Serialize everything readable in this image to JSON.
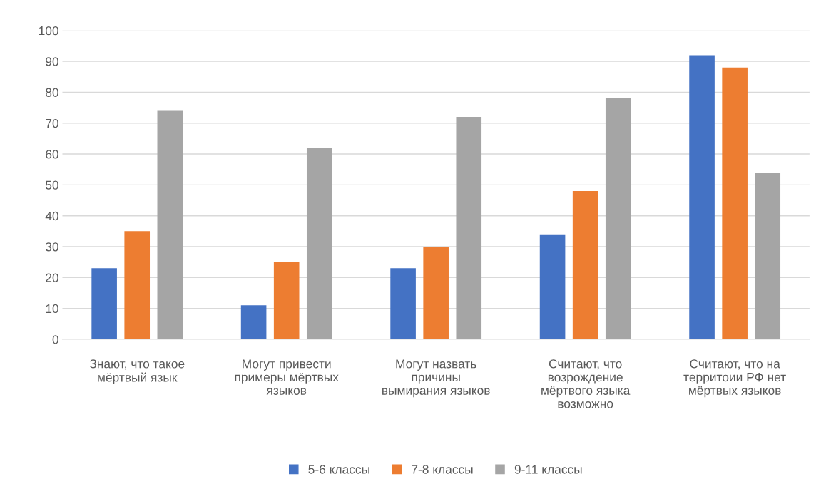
{
  "chart_data": {
    "type": "bar",
    "categories": [
      "Знают, что такое\nмёртвый язык",
      "Могут привести\nпримеры мёртвых\nязыков",
      "Могут назвать\nпричины\nвымирания языков",
      "Считают, что\nвозрождение\nмёртвого языка\nвозможно",
      "Считают, что на\nтерритоии РФ нет\nмёртвых языков"
    ],
    "series": [
      {
        "name": "5-6 классы",
        "color": "#4472c4",
        "values": [
          23,
          11,
          23,
          34,
          92
        ]
      },
      {
        "name": "7-8 классы",
        "color": "#ed7d31",
        "values": [
          35,
          25,
          30,
          48,
          88
        ]
      },
      {
        "name": "9-11 классы",
        "color": "#a5a5a5",
        "values": [
          74,
          62,
          72,
          78,
          54
        ]
      }
    ],
    "ylim": [
      0,
      100
    ],
    "yticks": [
      0,
      10,
      20,
      30,
      40,
      50,
      60,
      70,
      80,
      90,
      100
    ],
    "grid": "y",
    "legend": "bottom"
  }
}
